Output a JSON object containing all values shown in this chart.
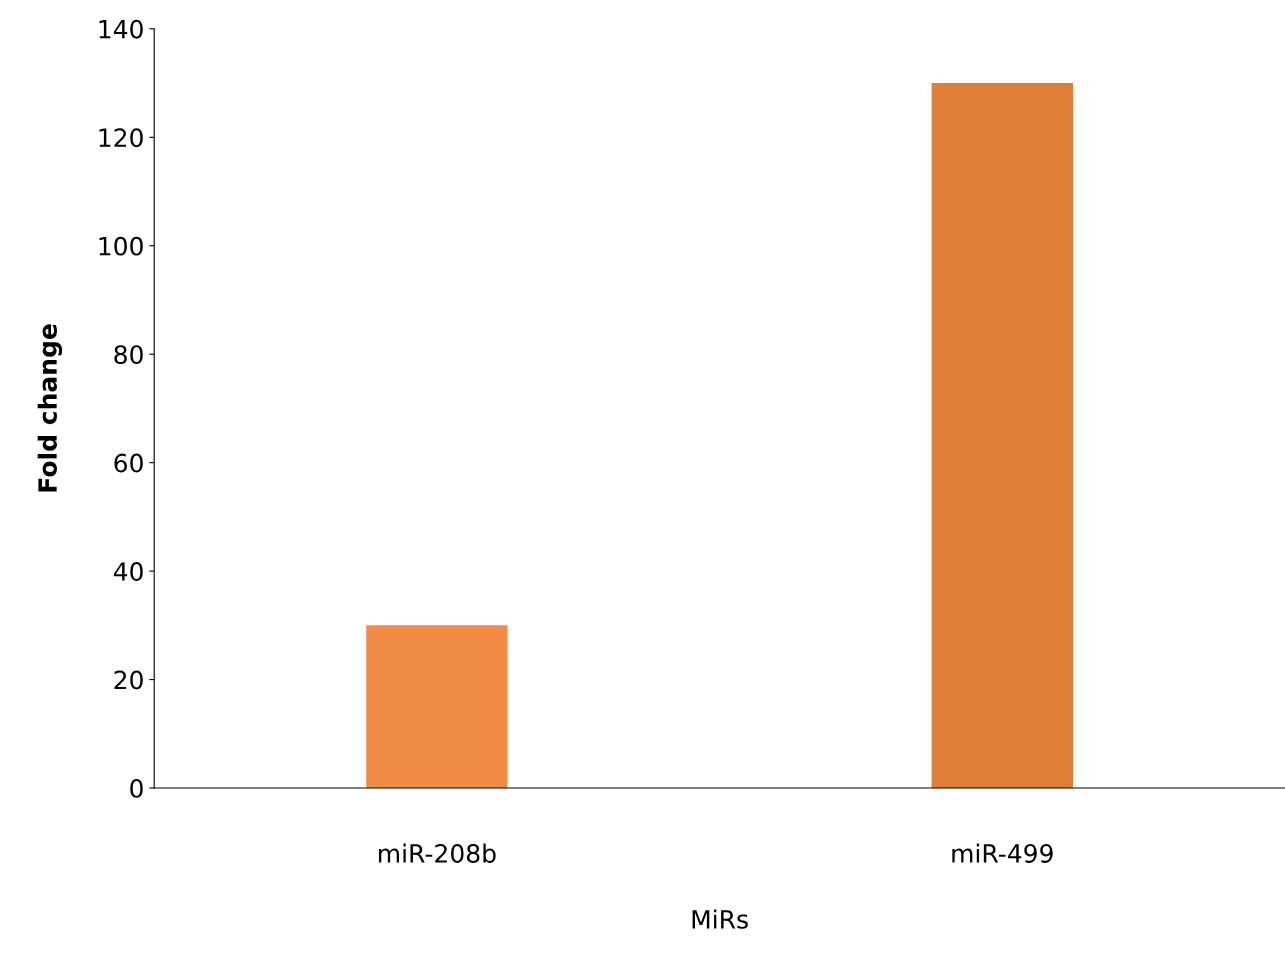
{
  "chart_data": {
    "type": "bar",
    "xlabel": "MiRs",
    "ylabel": "Fold change",
    "categories": [
      "miR-208b",
      "miR-499"
    ],
    "values": [
      30,
      130
    ],
    "colors": [
      "#f28c45",
      "#e07f35"
    ],
    "ylim": [
      0,
      140
    ],
    "yticks": [
      0,
      20,
      40,
      60,
      80,
      100,
      120,
      140
    ],
    "grid": false,
    "legend": false
  }
}
